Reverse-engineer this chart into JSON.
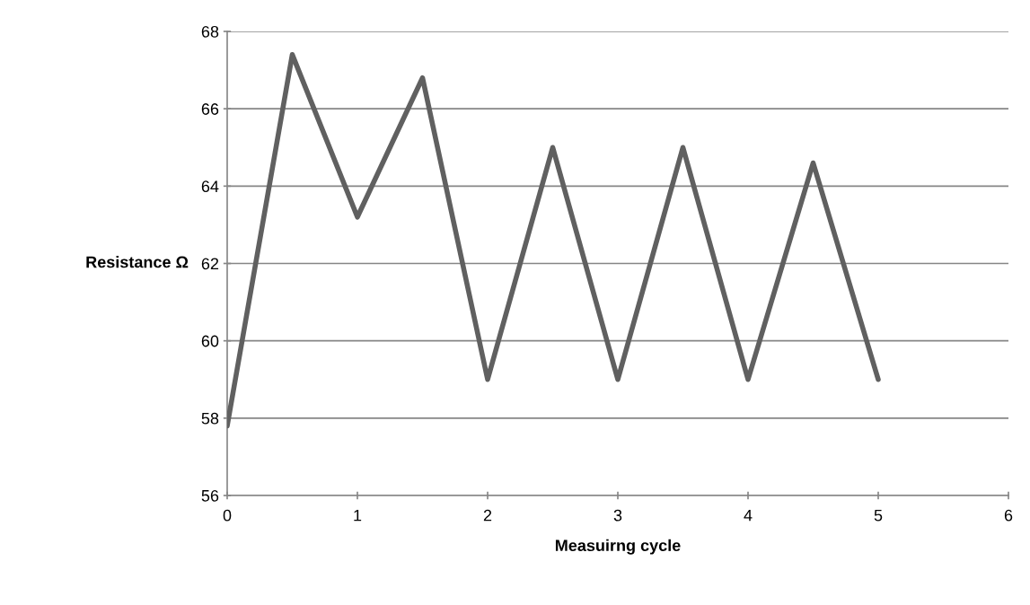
{
  "chart_data": {
    "type": "line",
    "xlabel": "Measuirng cycle",
    "ylabel": "Resistance Ω",
    "series": [
      {
        "color": "#606060",
        "x": [
          0,
          0.5,
          1,
          1.5,
          2,
          2.5,
          3,
          3.5,
          4,
          4.5,
          5
        ],
        "values": [
          57.8,
          67.4,
          63.2,
          66.8,
          59.0,
          65.0,
          59.0,
          65.0,
          59.0,
          64.6,
          59.0
        ]
      }
    ],
    "xlim": [
      0,
      6
    ],
    "xticks": [
      0,
      1,
      2,
      3,
      4,
      5,
      6
    ],
    "ylim": [
      56,
      68
    ],
    "yticks": [
      56,
      58,
      60,
      62,
      64,
      66,
      68
    ],
    "grid": "y",
    "marker": "none",
    "line_style": "solid"
  }
}
